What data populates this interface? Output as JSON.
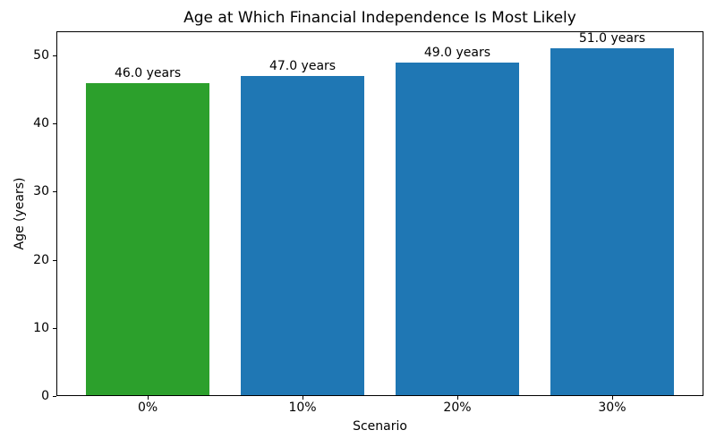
{
  "chart_data": {
    "type": "bar",
    "title": "Age at Which Financial Independence Is Most Likely",
    "xlabel": "Scenario",
    "ylabel": "Age (years)",
    "categories": [
      "0%",
      "10%",
      "20%",
      "30%"
    ],
    "values": [
      46.0,
      47.0,
      49.0,
      51.0
    ],
    "bar_labels": [
      "46.0 years",
      "47.0 years",
      "49.0 years",
      "51.0 years"
    ],
    "bar_colors": [
      "#2ca02c",
      "#1f77b4",
      "#1f77b4",
      "#1f77b4"
    ],
    "ylim": [
      0,
      53.55
    ],
    "yticks": [
      0,
      10,
      20,
      30,
      40,
      50
    ],
    "grid": false,
    "legend_position": "none"
  }
}
